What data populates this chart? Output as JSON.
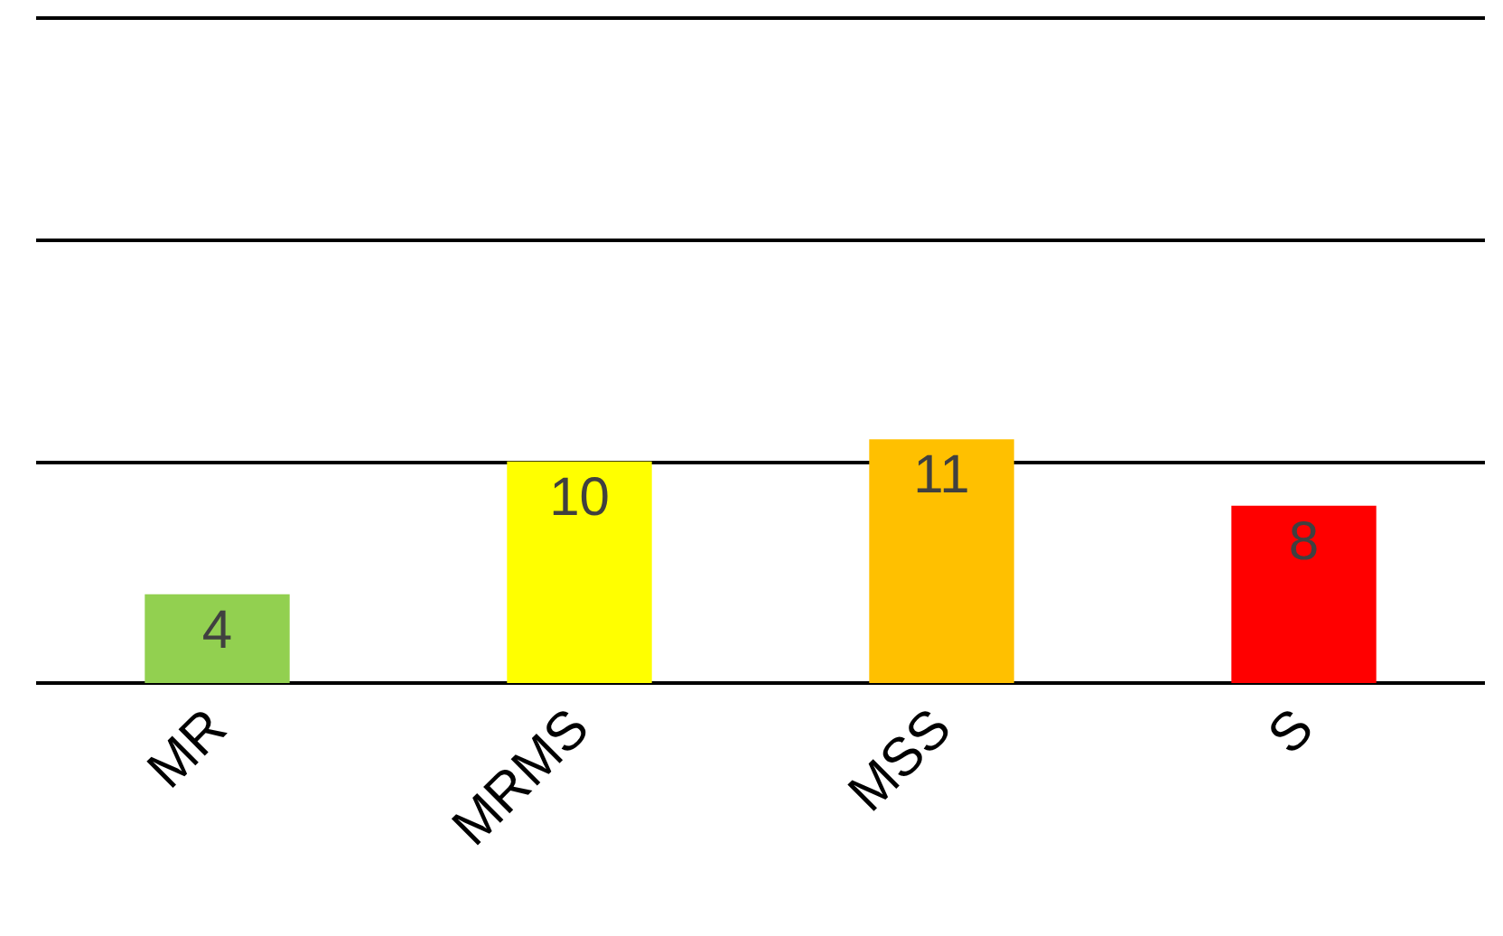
{
  "chart_data": {
    "type": "bar",
    "categories": [
      "MR",
      "MRMS",
      "MSS",
      "S"
    ],
    "values": [
      4,
      10,
      11,
      8
    ],
    "colors": [
      "#92d050",
      "#ffff00",
      "#ffc000",
      "#ff0000"
    ],
    "ylim": [
      0,
      30
    ],
    "yticks": [
      {
        "value": 0,
        "label": null
      },
      {
        "value": 10,
        "label": null
      },
      {
        "value": 20,
        "label": null
      },
      {
        "value": 30,
        "label": null
      }
    ],
    "tick_labels": "x",
    "grid": "y",
    "data_labels": true
  }
}
